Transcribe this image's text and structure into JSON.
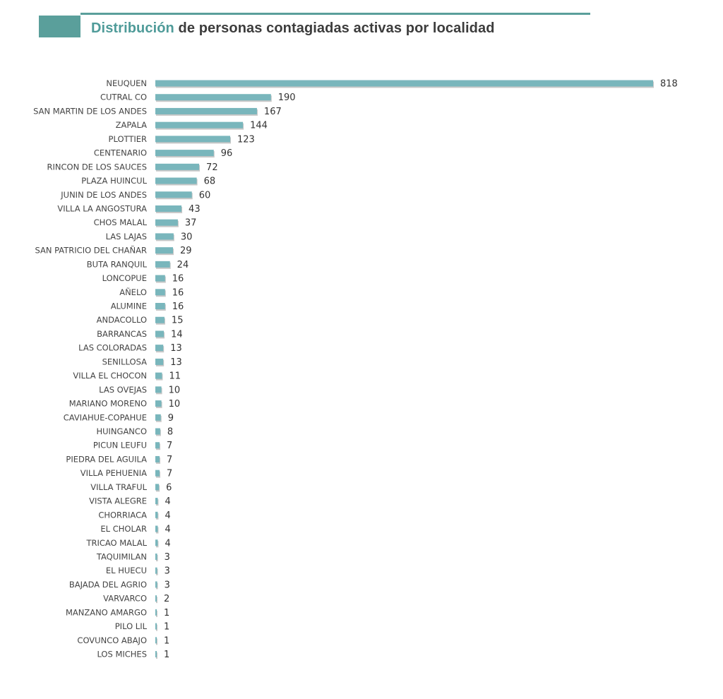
{
  "header": {
    "title_accent": "Distribución",
    "title_rest": " de personas contagiadas activas por localidad"
  },
  "colors": {
    "bar": "#79b6bc",
    "bar_shadow": "#9a9a9a",
    "accent": "#4f9b99",
    "header_block": "#5a9f9b"
  },
  "chart_data": {
    "type": "bar",
    "orientation": "horizontal",
    "title": "Distribución de personas contagiadas activas por localidad",
    "xlabel": "",
    "ylabel": "",
    "xlim": [
      0,
      818
    ],
    "grid": false,
    "legend": "none",
    "categories": [
      "NEUQUEN",
      "CUTRAL CO",
      "SAN MARTIN DE LOS ANDES",
      "ZAPALA",
      "PLOTTIER",
      "CENTENARIO",
      "RINCON DE LOS SAUCES",
      "PLAZA HUINCUL",
      "JUNIN DE LOS ANDES",
      "VILLA LA ANGOSTURA",
      "CHOS MALAL",
      "LAS LAJAS",
      "SAN PATRICIO DEL CHAÑAR",
      "BUTA RANQUIL",
      "LONCOPUE",
      "AÑELO",
      "ALUMINE",
      "ANDACOLLO",
      "BARRANCAS",
      "LAS COLORADAS",
      "SENILLOSA",
      "VILLA EL CHOCON",
      "LAS OVEJAS",
      "MARIANO MORENO",
      "CAVIAHUE-COPAHUE",
      "HUINGANCO",
      "PICUN LEUFU",
      "PIEDRA DEL AGUILA",
      "VILLA PEHUENIA",
      "VILLA TRAFUL",
      "VISTA ALEGRE",
      "CHORRIACA",
      "EL CHOLAR",
      "TRICAO MALAL",
      "TAQUIMILAN",
      "EL HUECU",
      "BAJADA DEL AGRIO",
      "VARVARCO",
      "MANZANO AMARGO",
      "PILO LIL",
      "COVUNCO ABAJO",
      "LOS MICHES"
    ],
    "values": [
      818,
      190,
      167,
      144,
      123,
      96,
      72,
      68,
      60,
      43,
      37,
      30,
      29,
      24,
      16,
      16,
      16,
      15,
      14,
      13,
      13,
      11,
      10,
      10,
      9,
      8,
      7,
      7,
      7,
      6,
      4,
      4,
      4,
      4,
      3,
      3,
      3,
      2,
      1,
      1,
      1,
      1
    ]
  }
}
